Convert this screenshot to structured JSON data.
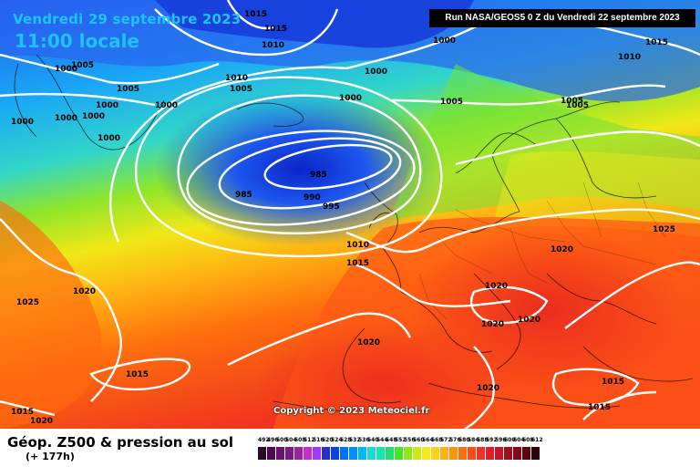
{
  "header": {
    "date": "Vendredi 29 septembre 2023",
    "time": "11:00 locale",
    "run": "Run NASA/GEOS5 0 Z du Vendredi 22 septembre 2023"
  },
  "copyright": "Copyright © 2023 Meteociel.fr",
  "footer": {
    "title": "Géop. Z500 & pression au sol",
    "lead": "(+ 177h)"
  },
  "scale": {
    "values": [
      "492",
      "496",
      "500",
      "504",
      "508",
      "512",
      "516",
      "520",
      "524",
      "528",
      "532",
      "536",
      "540",
      "544",
      "548",
      "552",
      "556",
      "560",
      "564",
      "568",
      "572",
      "576",
      "580",
      "584",
      "588",
      "592",
      "596",
      "600",
      "604",
      "608",
      "612"
    ],
    "colors": [
      "#2b0a2b",
      "#4a0d4d",
      "#6a1270",
      "#7c1a85",
      "#9a249e",
      "#c92bd0",
      "#a237ff",
      "#2030c8",
      "#1040e0",
      "#0070ff",
      "#0090ff",
      "#00b8ff",
      "#1ed7d7",
      "#16e6b0",
      "#20e070",
      "#49e22a",
      "#8ee81c",
      "#c6ec1a",
      "#f4ec18",
      "#ffd11a",
      "#ffb313",
      "#ff9210",
      "#ff6f0d",
      "#ff4a1a",
      "#f52f25",
      "#e01e2a",
      "#c81426",
      "#a70c1d",
      "#860816",
      "#5f050f",
      "#2b0205"
    ]
  },
  "isobar_labels": [
    {
      "text": "1015"
    },
    {
      "text": "1015"
    },
    {
      "text": "1010"
    },
    {
      "text": "1005"
    },
    {
      "text": "1005"
    },
    {
      "text": "1010"
    },
    {
      "text": "1005"
    },
    {
      "text": "1000"
    },
    {
      "text": "1000"
    },
    {
      "text": "1000"
    },
    {
      "text": "1000"
    },
    {
      "text": "1000"
    },
    {
      "text": "1000"
    },
    {
      "text": "1000"
    },
    {
      "text": "1000"
    },
    {
      "text": "1000"
    },
    {
      "text": "1000"
    },
    {
      "text": "1005"
    },
    {
      "text": "1005"
    },
    {
      "text": "1005"
    },
    {
      "text": "1015"
    },
    {
      "text": "1010"
    },
    {
      "text": "985"
    },
    {
      "text": "985"
    },
    {
      "text": "990"
    },
    {
      "text": "995"
    },
    {
      "text": "1010"
    },
    {
      "text": "1015"
    },
    {
      "text": "1025"
    },
    {
      "text": "1020"
    },
    {
      "text": "1020"
    },
    {
      "text": "1020"
    },
    {
      "text": "1020"
    },
    {
      "text": "1020"
    },
    {
      "text": "1020"
    },
    {
      "text": "1025"
    },
    {
      "text": "1020"
    },
    {
      "text": "1015"
    },
    {
      "text": "1015"
    },
    {
      "text": "1015"
    },
    {
      "text": "1015"
    },
    {
      "text": "1020"
    }
  ]
}
